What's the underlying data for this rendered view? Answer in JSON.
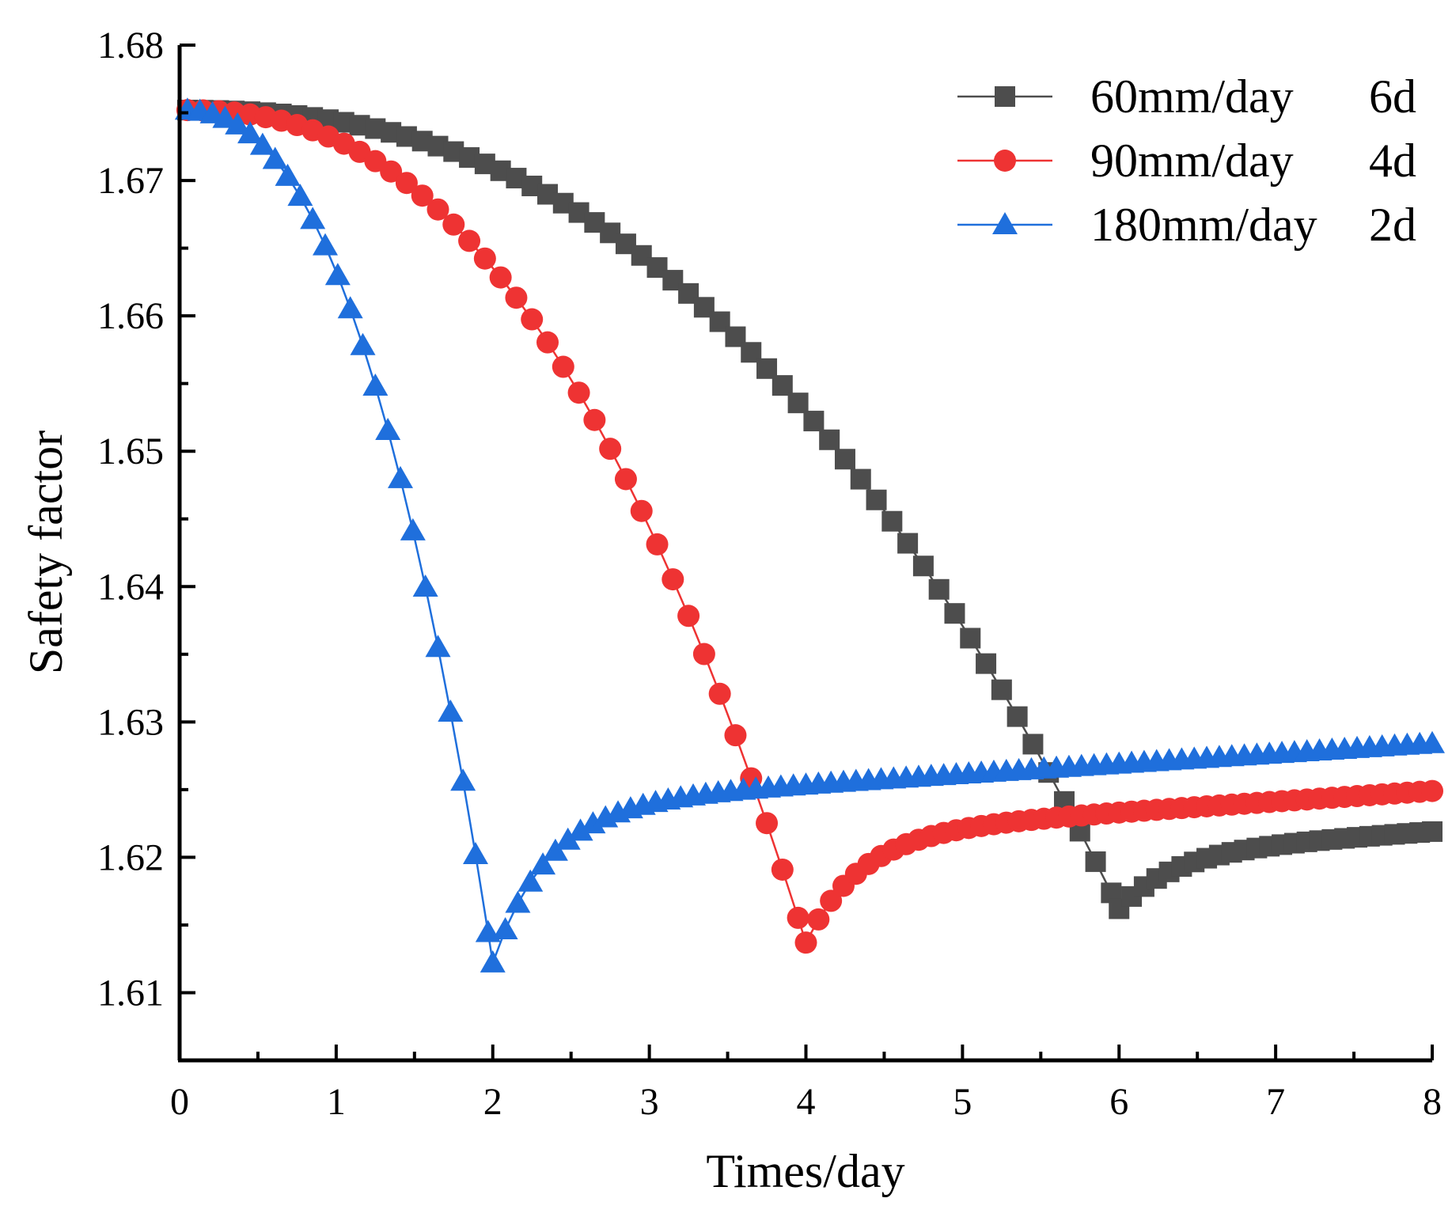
{
  "chart_data": {
    "type": "line",
    "title": "",
    "xlabel": "Times/day",
    "ylabel": "Safety factor",
    "xlim": [
      0,
      8
    ],
    "ylim": [
      1.605,
      1.68
    ],
    "x_ticks": [
      "0",
      "1",
      "2",
      "3",
      "4",
      "5",
      "6",
      "7",
      "8"
    ],
    "y_ticks": [
      "1.61",
      "1.62",
      "1.63",
      "1.64",
      "1.65",
      "1.66",
      "1.67",
      "1.68"
    ],
    "grid": false,
    "legend_position": "top-right",
    "series": [
      {
        "name": "60mm/day",
        "duration": "6d",
        "color": "#4d4d4d",
        "marker": "square",
        "rain_end": 6,
        "start": 1.6752,
        "min": 1.6162,
        "end": 1.6219
      },
      {
        "name": "90mm/day",
        "duration": "4d",
        "color": "#ee3333",
        "marker": "circle",
        "rain_end": 4,
        "start": 1.6752,
        "min": 1.6137,
        "end": 1.6249
      },
      {
        "name": "180mm/day",
        "duration": "2d",
        "color": "#1f6fdc",
        "marker": "triangle",
        "rain_end": 2,
        "start": 1.6752,
        "min": 1.6122,
        "end": 1.6284
      }
    ]
  }
}
